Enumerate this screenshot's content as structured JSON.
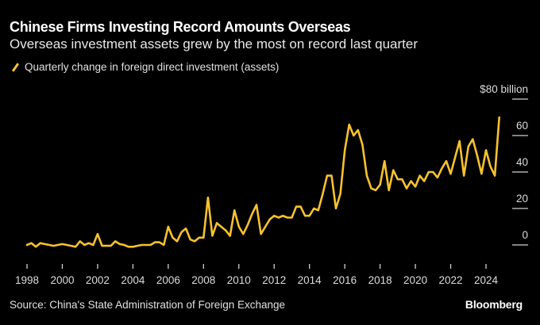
{
  "title": "Chinese Firms Investing Record Amounts Overseas",
  "subtitle": "Overseas investment assets grew by the most on record last quarter",
  "legend": {
    "label": "Quarterly change in foreign direct investment (assets)",
    "color": "#f7c22d"
  },
  "source": "Source: China's State Administration of Foreign Exchange",
  "brand": "Bloomberg",
  "chart_data": {
    "type": "line",
    "title": "Chinese Firms Investing Record Amounts Overseas",
    "subtitle": "Overseas investment assets grew by the most on record last quarter",
    "xlabel": "",
    "ylabel": "$ billion",
    "x_start": 1998.0,
    "x_step": 0.25,
    "xlim": [
      1998,
      2024.25
    ],
    "ylim": [
      -5,
      80
    ],
    "x_ticks": [
      "1998",
      "2000",
      "2002",
      "2004",
      "2006",
      "2008",
      "2010",
      "2012",
      "2014",
      "2016",
      "2018",
      "2020",
      "2022",
      "2024"
    ],
    "y_ticks": [
      {
        "value": 80,
        "label": "$80 billion"
      },
      {
        "value": 60,
        "label": "60"
      },
      {
        "value": 40,
        "label": "40"
      },
      {
        "value": 20,
        "label": "20"
      },
      {
        "value": 0,
        "label": "0"
      }
    ],
    "grid": false,
    "legend_position": "top-left",
    "series": [
      {
        "name": "Quarterly change in foreign direct investment (assets)",
        "color": "#f7c22d",
        "values": [
          0,
          1,
          -1,
          1,
          0.5,
          0,
          -0.5,
          0,
          0.5,
          0,
          -0.5,
          -1,
          2,
          0,
          1,
          0,
          6,
          -0.5,
          -0.5,
          -0.5,
          2,
          0.5,
          0,
          -1,
          -1,
          -0.5,
          0,
          0,
          0,
          1.5,
          1.5,
          0,
          10,
          4,
          2,
          7,
          9,
          3,
          2,
          4,
          4,
          26,
          5,
          12,
          10,
          8,
          5,
          19,
          10,
          6,
          11,
          17,
          22,
          6,
          10,
          14,
          16,
          15,
          16,
          15,
          15,
          21,
          21,
          16,
          16,
          20,
          19,
          28,
          38,
          38,
          20,
          28,
          52,
          66,
          60,
          63,
          55,
          38,
          31,
          30,
          33,
          46,
          30,
          41,
          36,
          36,
          31,
          35,
          32,
          38,
          35,
          40,
          40,
          37,
          42,
          46,
          39,
          48,
          57,
          38,
          54,
          58,
          49,
          39,
          52,
          43,
          38,
          70
        ]
      }
    ]
  }
}
